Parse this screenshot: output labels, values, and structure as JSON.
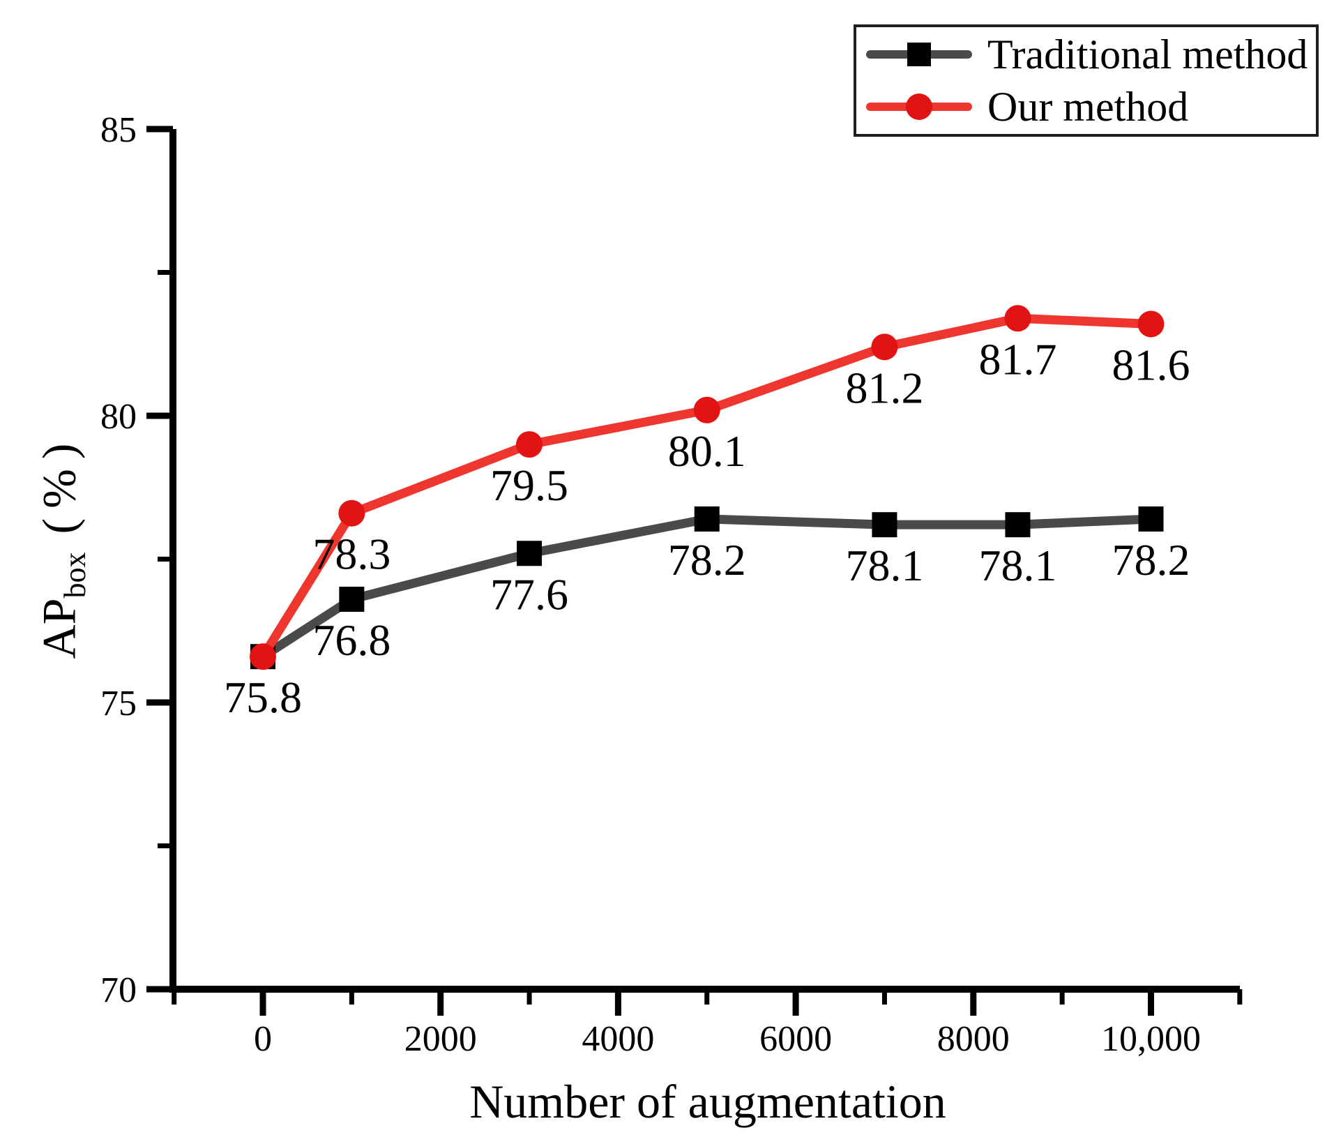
{
  "figure": {
    "background": "#ffffff"
  },
  "legend": {
    "position": "top-right",
    "entries": [
      {
        "label": "Traditional method",
        "line_color": "#4a4a4a",
        "marker": "square",
        "marker_color": "#000000"
      },
      {
        "label": "Our method",
        "line_color": "#ee362e",
        "marker": "circle",
        "marker_color": "#e21313"
      }
    ]
  },
  "titles": {
    "xlabel": "Number of augmentation",
    "ylabel_base": "AP",
    "ylabel_subscript": "box",
    "ylabel_paren_open": "(",
    "ylabel_percent": "%",
    "ylabel_paren_close": ")"
  },
  "chart_data": {
    "type": "line",
    "title": "",
    "xlabel": "Number of augmentation",
    "ylabel": "AP box (%)",
    "xlim": [
      -1000,
      11000
    ],
    "ylim": [
      70,
      85
    ],
    "grid": false,
    "legend_position": "top-right",
    "x_major_ticks": [
      {
        "value": 0,
        "label": "0"
      },
      {
        "value": 2000,
        "label": "2000"
      },
      {
        "value": 4000,
        "label": "4000"
      },
      {
        "value": 6000,
        "label": "6000"
      },
      {
        "value": 8000,
        "label": "8000"
      },
      {
        "value": 10000,
        "label": "10,000"
      }
    ],
    "x_minor_ticks": [
      -1000,
      1000,
      3000,
      5000,
      7000,
      9000,
      11000
    ],
    "y_major_ticks": [
      {
        "value": 70,
        "label": "70"
      },
      {
        "value": 75,
        "label": "75"
      },
      {
        "value": 80,
        "label": "80"
      },
      {
        "value": 85,
        "label": "85"
      }
    ],
    "y_minor_ticks": [
      72.5,
      77.5,
      82.5
    ],
    "series": [
      {
        "name": "Traditional method",
        "marker": "square",
        "line_color": "#4a4a4a",
        "marker_color": "#000000",
        "x": [
          0,
          1000,
          3000,
          5000,
          7000,
          8500,
          10000
        ],
        "values": [
          75.8,
          76.8,
          77.6,
          78.2,
          78.1,
          78.1,
          78.2
        ],
        "point_labels": [
          "",
          "76.8",
          "77.6",
          "78.2",
          "78.1",
          "78.1",
          "78.2"
        ]
      },
      {
        "name": "Our method",
        "marker": "circle",
        "line_color": "#ee362e",
        "marker_color": "#e21313",
        "x": [
          0,
          1000,
          3000,
          5000,
          7000,
          8500,
          10000
        ],
        "values": [
          75.8,
          78.3,
          79.5,
          80.1,
          81.2,
          81.7,
          81.6
        ],
        "point_labels": [
          "75.8",
          "78.3",
          "79.5",
          "80.1",
          "81.2",
          "81.7",
          "81.6"
        ]
      }
    ]
  }
}
